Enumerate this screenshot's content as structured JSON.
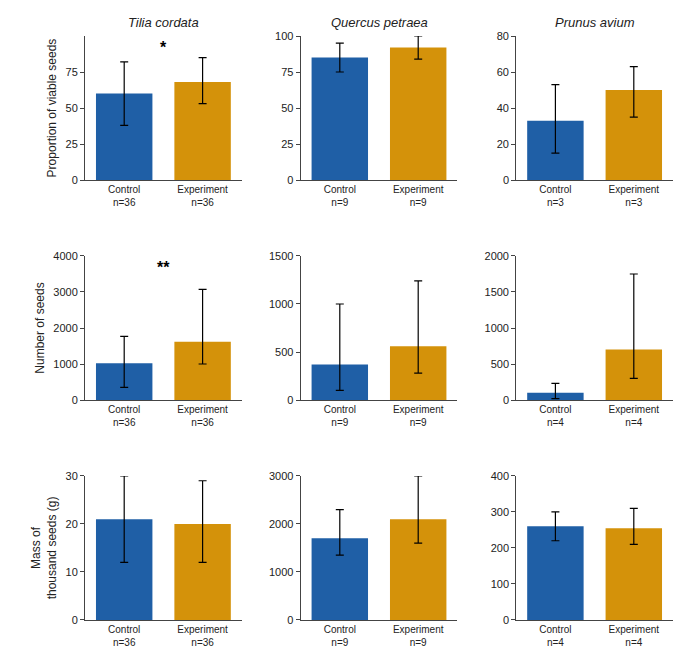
{
  "chart_data": [
    {
      "type": "bar",
      "title": "Tilia cordata",
      "y_label": "Proportion of viable seeds",
      "categories": [
        "Control\nn=36",
        "Experiment\nn=36"
      ],
      "values": [
        60,
        68
      ],
      "errors_low": [
        22,
        15
      ],
      "errors_high": [
        22,
        17
      ],
      "colors": [
        "#1f5fa6",
        "#d4920a"
      ],
      "ylim": [
        0,
        100
      ],
      "yticks": [
        0,
        25,
        50,
        75
      ],
      "grid": false,
      "annotations": [
        {
          "text": "*"
        }
      ]
    },
    {
      "type": "bar",
      "title": "Quercus petraea",
      "categories": [
        "Control\nn=9",
        "Experiment\nn=9"
      ],
      "values": [
        85,
        92
      ],
      "errors_low": [
        10,
        8
      ],
      "errors_high": [
        10,
        8
      ],
      "colors": [
        "#1f5fa6",
        "#d4920a"
      ],
      "ylim": [
        0,
        100
      ],
      "yticks": [
        0,
        25,
        50,
        75,
        100
      ],
      "grid": false
    },
    {
      "type": "bar",
      "title": "Prunus avium",
      "categories": [
        "Control\nn=3",
        "Experiment\nn=3"
      ],
      "values": [
        33,
        50
      ],
      "errors_low": [
        18,
        15
      ],
      "errors_high": [
        20,
        13
      ],
      "colors": [
        "#1f5fa6",
        "#d4920a"
      ],
      "ylim": [
        0,
        80
      ],
      "yticks": [
        0,
        20,
        40,
        60,
        80
      ],
      "grid": false
    },
    {
      "type": "bar",
      "y_label": "Number of seeds",
      "categories": [
        "Control\nn=36",
        "Experiment\nn=36"
      ],
      "values": [
        1020,
        1620
      ],
      "errors_low": [
        670,
        620
      ],
      "errors_high": [
        750,
        1450
      ],
      "colors": [
        "#1f5fa6",
        "#d4920a"
      ],
      "ylim": [
        0,
        4000
      ],
      "yticks": [
        0,
        1000,
        2000,
        3000,
        4000
      ],
      "grid": false,
      "annotations": [
        {
          "text": "**"
        }
      ]
    },
    {
      "type": "bar",
      "categories": [
        "Control\nn=9",
        "Experiment\nn=9"
      ],
      "values": [
        370,
        560
      ],
      "errors_low": [
        270,
        280
      ],
      "errors_high": [
        630,
        680
      ],
      "colors": [
        "#1f5fa6",
        "#d4920a"
      ],
      "ylim": [
        0,
        1500
      ],
      "yticks": [
        0,
        500,
        1000,
        1500
      ],
      "grid": false
    },
    {
      "type": "bar",
      "categories": [
        "Control\nn=4",
        "Experiment\nn=4"
      ],
      "values": [
        100,
        700
      ],
      "errors_low": [
        80,
        400
      ],
      "errors_high": [
        130,
        1050
      ],
      "colors": [
        "#1f5fa6",
        "#d4920a"
      ],
      "ylim": [
        0,
        2000
      ],
      "yticks": [
        0,
        500,
        1000,
        1500,
        2000
      ],
      "grid": false
    },
    {
      "type": "bar",
      "y_label": "Mass of\nthousand seeds (g)",
      "categories": [
        "Control\nn=36",
        "Experiment\nn=36"
      ],
      "values": [
        21,
        20
      ],
      "errors_low": [
        9,
        8
      ],
      "errors_high": [
        9,
        9
      ],
      "colors": [
        "#1f5fa6",
        "#d4920a"
      ],
      "ylim": [
        0,
        30
      ],
      "yticks": [
        0,
        10,
        20,
        30
      ],
      "grid": false
    },
    {
      "type": "bar",
      "categories": [
        "Control\nn=9",
        "Experiment\nn=9"
      ],
      "values": [
        1700,
        2100
      ],
      "errors_low": [
        350,
        500
      ],
      "errors_high": [
        600,
        900
      ],
      "colors": [
        "#1f5fa6",
        "#d4920a"
      ],
      "ylim": [
        0,
        3000
      ],
      "yticks": [
        0,
        1000,
        2000,
        3000
      ],
      "grid": false
    },
    {
      "type": "bar",
      "categories": [
        "Control\nn=4",
        "Experiment\nn=4"
      ],
      "values": [
        260,
        255
      ],
      "errors_low": [
        40,
        45
      ],
      "errors_high": [
        40,
        55
      ],
      "colors": [
        "#1f5fa6",
        "#d4920a"
      ],
      "ylim": [
        0,
        400
      ],
      "yticks": [
        0,
        100,
        200,
        300,
        400
      ],
      "grid": false
    }
  ]
}
